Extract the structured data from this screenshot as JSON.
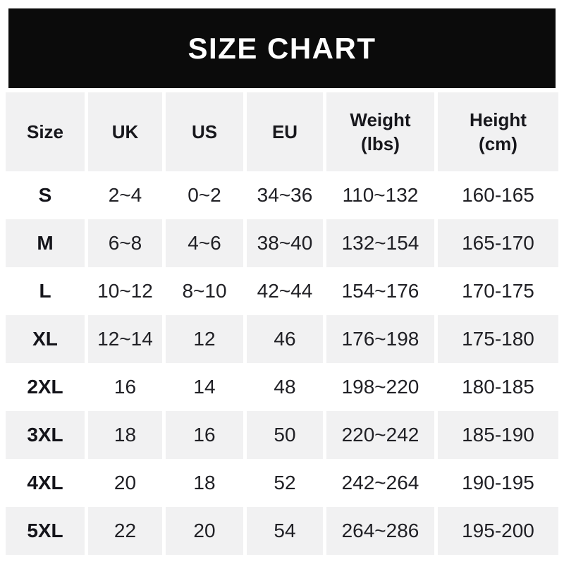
{
  "title": "SIZE CHART",
  "colors": {
    "banner_bg": "#0b0b0b",
    "banner_text": "#ffffff",
    "row_alt_bg": "#f1f1f2",
    "row_bg": "#ffffff",
    "text_dark": "#17171c",
    "text_data": "#202025"
  },
  "table": {
    "header_lines": [
      [
        "Size"
      ],
      [
        "UK"
      ],
      [
        "US"
      ],
      [
        "EU"
      ],
      [
        "Weight",
        "(lbs)"
      ],
      [
        "Height",
        "(cm)"
      ]
    ]
  },
  "chart_data": {
    "type": "table",
    "title": "SIZE CHART",
    "columns": [
      "Size",
      "UK",
      "US",
      "EU",
      "Weight (lbs)",
      "Height (cm)"
    ],
    "rows": [
      [
        "S",
        "2~4",
        "0~2",
        "34~36",
        "110~132",
        "160-165"
      ],
      [
        "M",
        "6~8",
        "4~6",
        "38~40",
        "132~154",
        "165-170"
      ],
      [
        "L",
        "10~12",
        "8~10",
        "42~44",
        "154~176",
        "170-175"
      ],
      [
        "XL",
        "12~14",
        "12",
        "46",
        "176~198",
        "175-180"
      ],
      [
        "2XL",
        "16",
        "14",
        "48",
        "198~220",
        "180-185"
      ],
      [
        "3XL",
        "18",
        "16",
        "50",
        "220~242",
        "185-190"
      ],
      [
        "4XL",
        "20",
        "18",
        "52",
        "242~264",
        "190-195"
      ],
      [
        "5XL",
        "22",
        "20",
        "54",
        "264~286",
        "195-200"
      ]
    ]
  }
}
